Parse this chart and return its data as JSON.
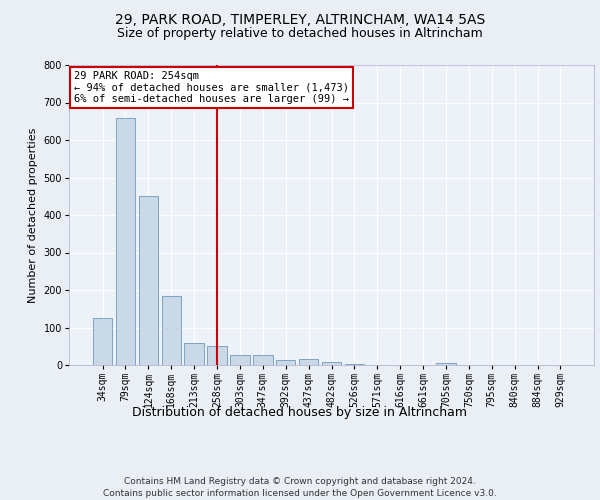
{
  "title1": "29, PARK ROAD, TIMPERLEY, ALTRINCHAM, WA14 5AS",
  "title2": "Size of property relative to detached houses in Altrincham",
  "xlabel": "Distribution of detached houses by size in Altrincham",
  "ylabel": "Number of detached properties",
  "categories": [
    "34sqm",
    "79sqm",
    "124sqm",
    "168sqm",
    "213sqm",
    "258sqm",
    "303sqm",
    "347sqm",
    "392sqm",
    "437sqm",
    "482sqm",
    "526sqm",
    "571sqm",
    "616sqm",
    "661sqm",
    "705sqm",
    "750sqm",
    "795sqm",
    "840sqm",
    "884sqm",
    "929sqm"
  ],
  "values": [
    125,
    660,
    450,
    185,
    60,
    50,
    28,
    28,
    14,
    16,
    9,
    4,
    0,
    0,
    0,
    5,
    0,
    0,
    0,
    0,
    0
  ],
  "bar_color": "#c9d9e8",
  "bar_edgecolor": "#5a8ab0",
  "vline_x": 5,
  "vline_color": "#cc0000",
  "annotation_text": "29 PARK ROAD: 254sqm\n← 94% of detached houses are smaller (1,473)\n6% of semi-detached houses are larger (99) →",
  "annotation_box_color": "#ffffff",
  "annotation_box_edgecolor": "#cc0000",
  "ylim": [
    0,
    800
  ],
  "yticks": [
    0,
    100,
    200,
    300,
    400,
    500,
    600,
    700,
    800
  ],
  "footer_text": "Contains HM Land Registry data © Crown copyright and database right 2024.\nContains public sector information licensed under the Open Government Licence v3.0.",
  "background_color": "#eaeff5",
  "plot_background": "#edf2f8",
  "grid_color": "#ffffff",
  "title1_fontsize": 10,
  "title2_fontsize": 9,
  "xlabel_fontsize": 9,
  "ylabel_fontsize": 8,
  "tick_fontsize": 7,
  "annotation_fontsize": 7.5,
  "footer_fontsize": 6.5
}
